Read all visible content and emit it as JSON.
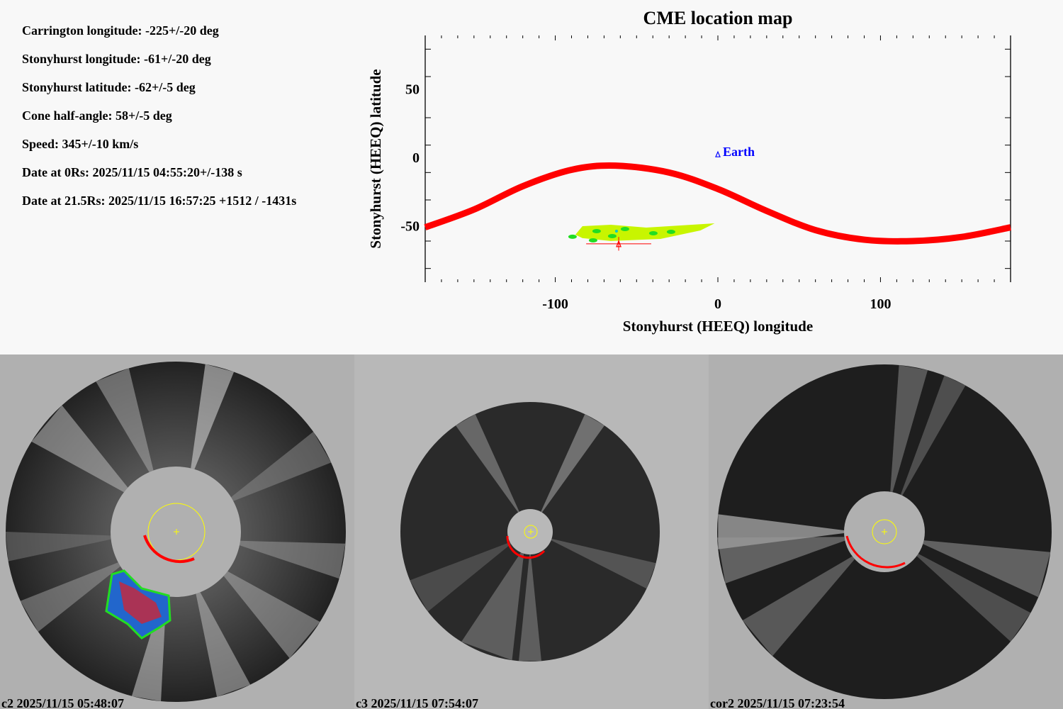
{
  "info": {
    "lines": [
      "Carrington longitude: -225+/-20 deg",
      "Stonyhurst longitude: -61+/-20 deg",
      "Stonyhurst latitude: -62+/-5 deg",
      "Cone half-angle: 58+/-5 deg",
      "Speed: 345+/-10 km/s",
      "Date at 0Rs: 2025/11/15 04:55:20+/-138 s",
      "Date at 21.5Rs: 2025/11/15 16:57:25 +1512 / -1431s"
    ]
  },
  "chart_data": {
    "type": "scatter",
    "title": "CME location map",
    "xlabel": "Stonyhurst (HEEQ) longitude",
    "ylabel": "Stonyhurst (HEEQ) latitude",
    "xlim": [
      -180,
      180
    ],
    "ylim": [
      -90,
      90
    ],
    "x_ticks": [
      -100,
      0,
      100
    ],
    "y_ticks": [
      50,
      0,
      -50
    ],
    "grid": false,
    "series": [
      {
        "name": "earth-visible-boundary",
        "kind": "line",
        "color": "#ff0000",
        "x": [
          -180,
          -150,
          -120,
          -90,
          -63,
          -30,
          0,
          30,
          60,
          90,
          120,
          150,
          180
        ],
        "y": [
          -50,
          -37,
          -20,
          -8,
          -5,
          -10,
          -22,
          -38,
          -52,
          -59,
          -60,
          -57,
          -50
        ]
      },
      {
        "name": "Earth",
        "kind": "marker",
        "color": "#0000ff",
        "marker": "triangle",
        "x": [
          0
        ],
        "y": [
          3
        ],
        "label": "Earth"
      },
      {
        "name": "CME-source",
        "kind": "marker-with-errorbar",
        "color": "#ff0000",
        "marker": "triangle",
        "x": [
          -61
        ],
        "y": [
          -62
        ],
        "x_err": 20,
        "y_err": 5
      },
      {
        "name": "CME-projection-region",
        "kind": "blob",
        "colors": [
          "#c8f500",
          "#22dd22",
          "#00c8c8"
        ],
        "x_range": [
          -92,
          -2
        ],
        "y_range": [
          -62,
          -45
        ]
      }
    ]
  },
  "panels": [
    {
      "label": "c2 2025/11/15 05:48:07",
      "instrument": "c2"
    },
    {
      "label": "c3 2025/11/15 07:54:07",
      "instrument": "c3"
    },
    {
      "label": "cor2 2025/11/15 07:23:54",
      "instrument": "cor2"
    }
  ]
}
